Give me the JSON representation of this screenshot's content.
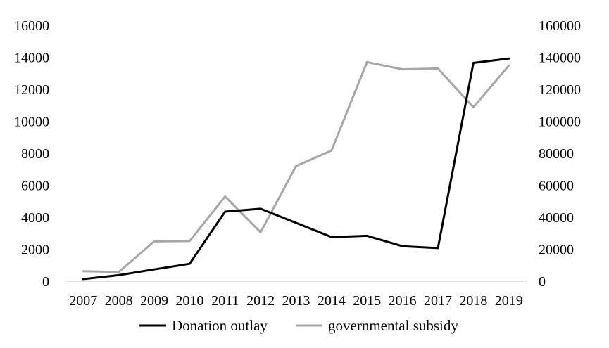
{
  "chart_data": {
    "type": "line",
    "categories": [
      "2007",
      "2008",
      "2009",
      "2010",
      "2011",
      "2012",
      "2013",
      "2014",
      "2015",
      "2016",
      "2017",
      "2018",
      "2019"
    ],
    "series": [
      {
        "name": "Donation outlay",
        "axis": "left",
        "color": "#000000",
        "values": [
          130,
          380,
          740,
          1090,
          4350,
          4530,
          3650,
          2760,
          2840,
          2190,
          2070,
          13650,
          13920
        ]
      },
      {
        "name": "governmental subsidy",
        "axis": "right",
        "color": "#a6a6a6",
        "values": [
          6300,
          5700,
          24900,
          25100,
          53000,
          30600,
          72000,
          81700,
          137000,
          132500,
          133000,
          108800,
          134800
        ]
      }
    ],
    "y_left": {
      "min": 0,
      "max": 16000,
      "ticks": [
        "0",
        "2000",
        "4000",
        "6000",
        "8000",
        "10000",
        "12000",
        "14000",
        "16000"
      ]
    },
    "y_right": {
      "min": 0,
      "max": 160000,
      "ticks": [
        "0",
        "20000",
        "40000",
        "60000",
        "80000",
        "100000",
        "120000",
        "140000",
        "160000"
      ]
    },
    "title": "",
    "xlabel": "",
    "ylabel": "",
    "grid": false,
    "legend_position": "bottom"
  }
}
